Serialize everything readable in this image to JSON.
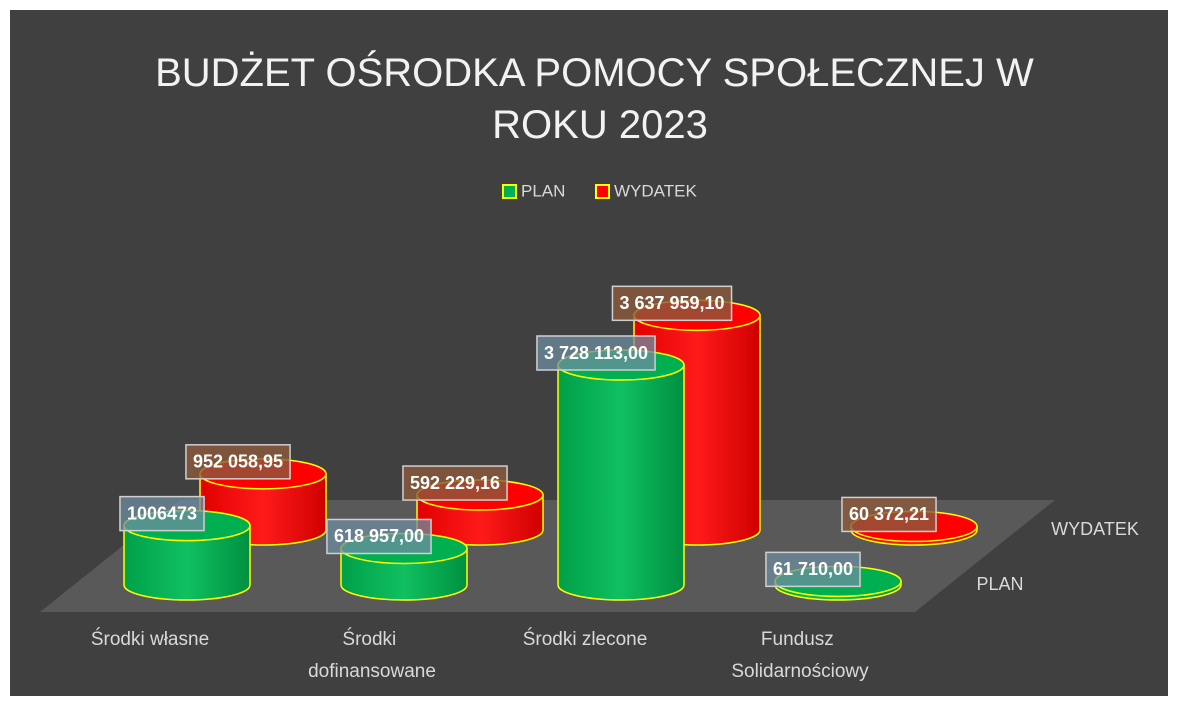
{
  "chart_data": {
    "type": "bar3d",
    "title": "BUDŻET OŚRODKA POMOCY SPOŁECZNEJ W ROKU 2023",
    "categories": [
      "Środki własne",
      "Środki dofinansowane",
      "Środki zlecone",
      "Fundusz Solidarnościowy"
    ],
    "series": [
      {
        "name": "PLAN",
        "color": "#00b050",
        "values": [
          1006473,
          618957,
          3728113,
          61710
        ],
        "value_labels": [
          "1006473",
          "618 957,00",
          "3 728 113,00",
          "61 710,00"
        ]
      },
      {
        "name": "WYDATEK",
        "color": "#ff0000",
        "values": [
          952058.95,
          592229.16,
          3637959.1,
          60372.21
        ],
        "value_labels": [
          "952 058,95",
          "592 229,16",
          "3 637 959,10",
          "60 372,21"
        ]
      }
    ],
    "legend": "top"
  }
}
